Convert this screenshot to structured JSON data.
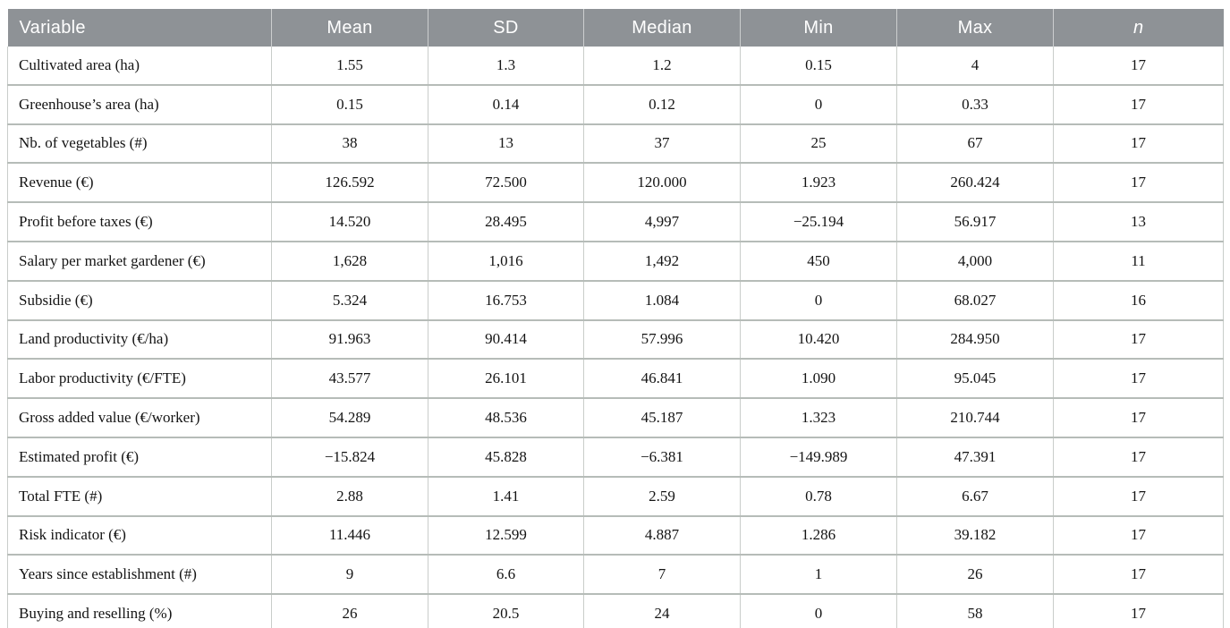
{
  "table": {
    "columns": [
      {
        "key": "variable",
        "label": "Variable"
      },
      {
        "key": "mean",
        "label": "Mean"
      },
      {
        "key": "sd",
        "label": "SD"
      },
      {
        "key": "median",
        "label": "Median"
      },
      {
        "key": "min",
        "label": "Min"
      },
      {
        "key": "max",
        "label": "Max"
      },
      {
        "key": "n",
        "label": "n"
      }
    ],
    "rows": [
      {
        "variable": "Cultivated area (ha)",
        "mean": "1.55",
        "sd": "1.3",
        "median": "1.2",
        "min": "0.15",
        "max": "4",
        "n": "17"
      },
      {
        "variable": "Greenhouse’s area (ha)",
        "mean": "0.15",
        "sd": "0.14",
        "median": "0.12",
        "min": "0",
        "max": "0.33",
        "n": "17"
      },
      {
        "variable": "Nb. of vegetables (#)",
        "mean": "38",
        "sd": "13",
        "median": "37",
        "min": "25",
        "max": "67",
        "n": "17"
      },
      {
        "variable": "Revenue (€)",
        "mean": "126.592",
        "sd": "72.500",
        "median": "120.000",
        "min": "1.923",
        "max": "260.424",
        "n": "17"
      },
      {
        "variable": "Profit before taxes (€)",
        "mean": "14.520",
        "sd": "28.495",
        "median": "4,997",
        "min": "−25.194",
        "max": "56.917",
        "n": "13"
      },
      {
        "variable": "Salary per market gardener (€)",
        "mean": "1,628",
        "sd": "1,016",
        "median": "1,492",
        "min": "450",
        "max": "4,000",
        "n": "11"
      },
      {
        "variable": "Subsidie (€)",
        "mean": "5.324",
        "sd": "16.753",
        "median": "1.084",
        "min": "0",
        "max": "68.027",
        "n": "16"
      },
      {
        "variable": "Land productivity (€/ha)",
        "mean": "91.963",
        "sd": "90.414",
        "median": "57.996",
        "min": "10.420",
        "max": "284.950",
        "n": "17"
      },
      {
        "variable": "Labor productivity (€/FTE)",
        "mean": "43.577",
        "sd": "26.101",
        "median": "46.841",
        "min": "1.090",
        "max": "95.045",
        "n": "17"
      },
      {
        "variable": "Gross added value (€/worker)",
        "mean": "54.289",
        "sd": "48.536",
        "median": "45.187",
        "min": "1.323",
        "max": "210.744",
        "n": "17"
      },
      {
        "variable": "Estimated profit (€)",
        "mean": "−15.824",
        "sd": "45.828",
        "median": "−6.381",
        "min": "−149.989",
        "max": "47.391",
        "n": "17"
      },
      {
        "variable": "Total FTE (#)",
        "mean": "2.88",
        "sd": "1.41",
        "median": "2.59",
        "min": "0.78",
        "max": "6.67",
        "n": "17"
      },
      {
        "variable": "Risk indicator (€)",
        "mean": "11.446",
        "sd": "12.599",
        "median": "4.887",
        "min": "1.286",
        "max": "39.182",
        "n": "17"
      },
      {
        "variable": "Years since establishment (#)",
        "mean": "9",
        "sd": "6.6",
        "median": "7",
        "min": "1",
        "max": "26",
        "n": "17"
      },
      {
        "variable": "Buying and reselling (%)",
        "mean": "26",
        "sd": "20.5",
        "median": "24",
        "min": "0",
        "max": "58",
        "n": "17"
      }
    ]
  }
}
